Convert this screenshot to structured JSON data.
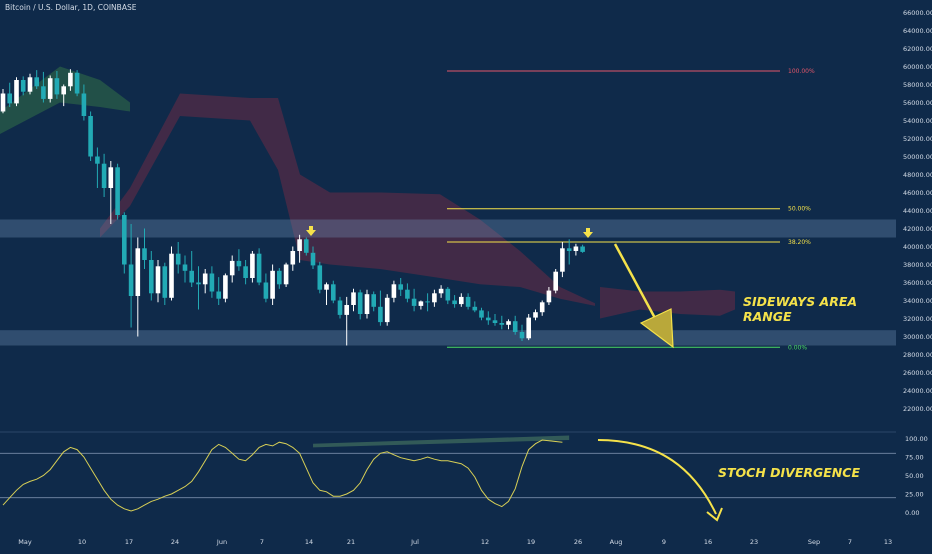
{
  "header": {
    "title": "Bitcoin / U.S. Dollar, 1D, COINBASE"
  },
  "colors": {
    "background": "#0f2a4a",
    "candle_up": "#ffffff",
    "candle_down": "#22aab5",
    "fib_100": "#e0566a",
    "fib_50": "#f5e24a",
    "fib_382": "#f5e24a",
    "fib_0": "#4cd964",
    "zone": "#6f8fb5",
    "cloud_red": "#6b2a45",
    "cloud_green": "#2f6b48",
    "stoch_line": "#d7cf56",
    "annotation": "#f5e24a"
  },
  "price_axis": {
    "ticks": [
      "66000.00",
      "64000.00",
      "62000.00",
      "60000.00",
      "58000.00",
      "56000.00",
      "54000.00",
      "52000.00",
      "50000.00",
      "48000.00",
      "46000.00",
      "44000.00",
      "42000.00",
      "40000.00",
      "38000.00",
      "36000.00",
      "34000.00",
      "32000.00",
      "30000.00",
      "28000.00",
      "26000.00",
      "24000.00",
      "22000.00"
    ]
  },
  "date_axis": {
    "ticks": [
      "May",
      "10",
      "17",
      "24",
      "Jun",
      "7",
      "14",
      "21",
      "Jul",
      "12",
      "19",
      "26",
      "Aug",
      "9",
      "16",
      "23",
      "Sep",
      "7",
      "13"
    ]
  },
  "oscillator_axis": {
    "ticks": [
      "100.00",
      "75.00",
      "50.00",
      "25.00",
      "0.00"
    ]
  },
  "fib_levels": [
    {
      "label": "100.00%",
      "price": 59500,
      "color": "#e0566a"
    },
    {
      "label": "50.00%",
      "price": 44200,
      "color": "#f5e24a"
    },
    {
      "label": "38.20%",
      "price": 40500,
      "color": "#f5e24a"
    },
    {
      "label": "0.00%",
      "price": 28800,
      "color": "#4cd964"
    }
  ],
  "zones": [
    {
      "from": 41000,
      "to": 43000
    },
    {
      "from": 29000,
      "to": 30700
    }
  ],
  "annotations": {
    "sideways_line1": "SIDEWAYS AREA",
    "sideways_line2": "RANGE",
    "stoch": "STOCH DIVERGENCE"
  },
  "chart_data": {
    "type": "candlestick",
    "series": [
      {
        "name": "BTC/USD daily",
        "values": [
          [
            55000,
            57500,
            54800,
            57000
          ],
          [
            57000,
            58200,
            55500,
            55900
          ],
          [
            55900,
            58800,
            55600,
            58500
          ],
          [
            58500,
            58900,
            56800,
            57200
          ],
          [
            57200,
            59200,
            56900,
            58800
          ],
          [
            58800,
            59600,
            57500,
            57800
          ],
          [
            57800,
            59400,
            56000,
            56400
          ],
          [
            56400,
            59000,
            56000,
            58700
          ],
          [
            58700,
            59500,
            56400,
            56900
          ],
          [
            56900,
            58000,
            55600,
            57800
          ],
          [
            57800,
            59700,
            57300,
            59300
          ],
          [
            59300,
            59600,
            56700,
            57000
          ],
          [
            57000,
            58000,
            54000,
            54500
          ],
          [
            54500,
            55000,
            49500,
            50000
          ],
          [
            50000,
            51000,
            46500,
            49200
          ],
          [
            49200,
            50300,
            45500,
            46500
          ],
          [
            46500,
            49500,
            42500,
            48800
          ],
          [
            48800,
            49200,
            43000,
            43500
          ],
          [
            43500,
            43800,
            37000,
            38000
          ],
          [
            38000,
            42500,
            31000,
            34500
          ],
          [
            34500,
            41000,
            30000,
            39800
          ],
          [
            39800,
            42000,
            37500,
            38500
          ],
          [
            38500,
            39500,
            34000,
            34800
          ],
          [
            34800,
            38500,
            33800,
            37800
          ],
          [
            37800,
            38200,
            33500,
            34300
          ],
          [
            34300,
            40000,
            34000,
            39200
          ],
          [
            39200,
            40500,
            37000,
            38000
          ],
          [
            38000,
            39000,
            36000,
            37300
          ],
          [
            37300,
            39500,
            35500,
            36000
          ],
          [
            36000,
            37800,
            33000,
            35800
          ],
          [
            35800,
            37500,
            34800,
            37000
          ],
          [
            37000,
            37800,
            34300,
            35000
          ],
          [
            35000,
            36600,
            33500,
            34200
          ],
          [
            34200,
            37000,
            33800,
            36800
          ],
          [
            36800,
            39000,
            36000,
            38400
          ],
          [
            38400,
            39700,
            37300,
            37800
          ],
          [
            37800,
            38500,
            35800,
            36500
          ],
          [
            36500,
            39500,
            36000,
            39200
          ],
          [
            39200,
            39800,
            35700,
            36000
          ],
          [
            36000,
            37000,
            33800,
            34200
          ],
          [
            34200,
            38000,
            33500,
            37300
          ],
          [
            37300,
            37600,
            35300,
            35800
          ],
          [
            35800,
            38200,
            35500,
            38000
          ],
          [
            38000,
            40000,
            37300,
            39500
          ],
          [
            39500,
            41300,
            38200,
            40800
          ],
          [
            40800,
            41000,
            39000,
            39300
          ],
          [
            39300,
            40000,
            37500,
            37900
          ],
          [
            37900,
            38300,
            34800,
            35200
          ],
          [
            35200,
            36000,
            33500,
            35800
          ],
          [
            35800,
            36200,
            33700,
            34000
          ],
          [
            34000,
            34400,
            32000,
            32400
          ],
          [
            32400,
            34400,
            29000,
            33500
          ],
          [
            33500,
            35300,
            32800,
            34900
          ],
          [
            34900,
            35200,
            31900,
            32500
          ],
          [
            32500,
            35200,
            32000,
            34700
          ],
          [
            34700,
            35000,
            32800,
            33300
          ],
          [
            33300,
            35100,
            31200,
            31600
          ],
          [
            31600,
            34700,
            31200,
            34300
          ],
          [
            34300,
            36200,
            33800,
            35800
          ],
          [
            35800,
            36500,
            34500,
            35200
          ],
          [
            35200,
            35900,
            33800,
            34200
          ],
          [
            34200,
            35300,
            32800,
            33400
          ],
          [
            33400,
            34000,
            33000,
            33900
          ],
          [
            33900,
            34800,
            32800,
            33800
          ],
          [
            33800,
            35200,
            33300,
            34800
          ],
          [
            34800,
            35700,
            34300,
            35300
          ],
          [
            35300,
            35500,
            33600,
            34000
          ],
          [
            34000,
            34600,
            33200,
            33600
          ],
          [
            33600,
            34800,
            33300,
            34400
          ],
          [
            34400,
            34800,
            33000,
            33300
          ],
          [
            33300,
            33900,
            32700,
            32900
          ],
          [
            32900,
            33200,
            31800,
            32100
          ],
          [
            32100,
            32800,
            31300,
            31800
          ],
          [
            31800,
            32500,
            31200,
            31500
          ],
          [
            31500,
            32300,
            30800,
            31300
          ],
          [
            31300,
            31900,
            30800,
            31700
          ],
          [
            31700,
            32300,
            30200,
            30500
          ],
          [
            30500,
            31300,
            29500,
            29800
          ],
          [
            29800,
            32500,
            29600,
            32100
          ],
          [
            32100,
            33000,
            31800,
            32700
          ],
          [
            32700,
            34000,
            32300,
            33800
          ],
          [
            33800,
            35500,
            33500,
            35100
          ],
          [
            35100,
            37500,
            34800,
            37200
          ],
          [
            37200,
            40500,
            36600,
            39800
          ],
          [
            39800,
            40800,
            38000,
            39500
          ],
          [
            39500,
            40300,
            39000,
            40000
          ],
          [
            40000,
            40200,
            39300,
            39400
          ]
        ]
      }
    ],
    "ylim": [
      21000,
      67000
    ]
  },
  "stoch_data": {
    "ylim": [
      -5,
      105
    ],
    "values": [
      10,
      20,
      30,
      38,
      42,
      45,
      50,
      58,
      70,
      82,
      88,
      85,
      75,
      60,
      45,
      30,
      18,
      10,
      5,
      2,
      5,
      10,
      15,
      18,
      22,
      25,
      30,
      35,
      42,
      55,
      70,
      85,
      92,
      88,
      80,
      72,
      70,
      78,
      88,
      92,
      90,
      95,
      93,
      88,
      80,
      60,
      40,
      30,
      28,
      22,
      22,
      25,
      30,
      40,
      58,
      72,
      80,
      82,
      78,
      74,
      72,
      70,
      72,
      75,
      72,
      70,
      70,
      68,
      66,
      60,
      48,
      30,
      18,
      12,
      8,
      15,
      32,
      62,
      85,
      93,
      98,
      97,
      96,
      95
    ]
  }
}
